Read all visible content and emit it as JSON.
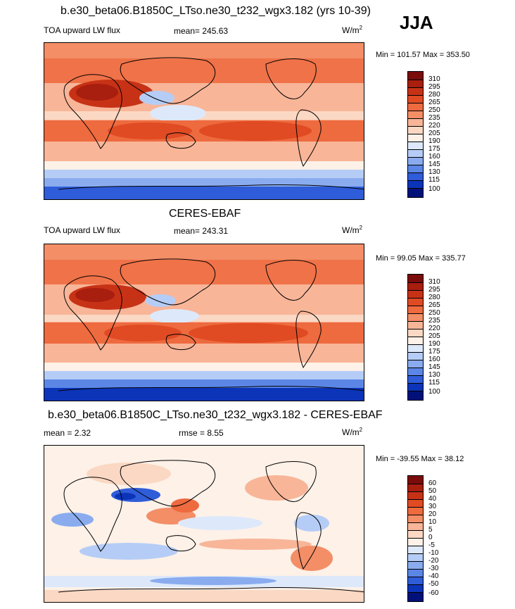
{
  "season": "JJA",
  "panels": [
    {
      "title": "b.e30_beta06.B1850C_LTso.ne30_t232_wgx3.182 (yrs 10-39)",
      "left_label": "TOA upward LW flux",
      "center_label": "mean= 245.63",
      "units_base": "W/m",
      "units_exp": "2",
      "minmax": "Min = 101.57 Max = 353.50",
      "colorbar_ticks": [
        "310",
        "295",
        "280",
        "265",
        "250",
        "235",
        "220",
        "205",
        "190",
        "175",
        "160",
        "145",
        "130",
        "115",
        "100"
      ]
    },
    {
      "title": "CERES-EBAF",
      "left_label": "TOA upward LW flux",
      "center_label": "mean= 243.31",
      "units_base": "W/m",
      "units_exp": "2",
      "minmax": "Min =  99.05 Max = 335.77",
      "colorbar_ticks": [
        "310",
        "295",
        "280",
        "265",
        "250",
        "235",
        "220",
        "205",
        "190",
        "175",
        "160",
        "145",
        "130",
        "115",
        "100"
      ]
    },
    {
      "title": "b.e30_beta06.B1850C_LTso.ne30_t232_wgx3.182 - CERES-EBAF",
      "left_label": "mean =   2.32",
      "center_label": "rmse =   8.55",
      "units_base": "W/m",
      "units_exp": "2",
      "minmax": "Min = -39.55 Max =  38.12",
      "colorbar_ticks": [
        "60",
        "50",
        "40",
        "30",
        "20",
        "10",
        "5",
        "0",
        "-5",
        "-10",
        "-20",
        "-30",
        "-40",
        "-50",
        "-60"
      ]
    }
  ],
  "colors": {
    "abs_scale": [
      "#7a0c0c",
      "#a81e0f",
      "#c73216",
      "#e04b24",
      "#ee6a3f",
      "#f38e66",
      "#f8b598",
      "#fbd8c3",
      "#fdf1e8",
      "#dde9fb",
      "#b5cdf6",
      "#8aacef",
      "#5b86e6",
      "#2f5cd8",
      "#0c34b8",
      "#02117a"
    ],
    "diff_scale": [
      "#7a0c0c",
      "#a81e0f",
      "#c73216",
      "#e04b24",
      "#ee6a3f",
      "#f38e66",
      "#f8b598",
      "#fbd8c3",
      "#fdf1e8",
      "#dde9fb",
      "#b5cdf6",
      "#8aacef",
      "#5b86e6",
      "#2f5cd8",
      "#0c34b8",
      "#02117a"
    ]
  }
}
